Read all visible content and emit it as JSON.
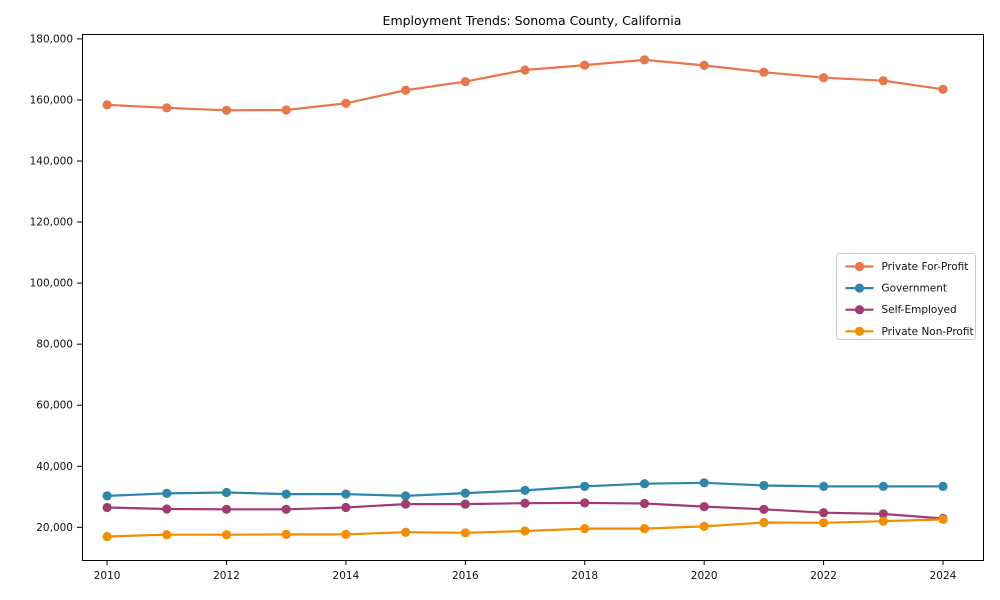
{
  "chart_data": {
    "type": "line",
    "title": "Employment Trends: Sonoma County, California",
    "x": [
      2010,
      2011,
      2012,
      2013,
      2014,
      2015,
      2016,
      2017,
      2018,
      2019,
      2020,
      2021,
      2022,
      2023,
      2024
    ],
    "series": [
      {
        "name": "Private For-Profit",
        "color": "#e8764b",
        "values": [
          158400,
          157400,
          156600,
          156700,
          158900,
          163200,
          166000,
          169800,
          171400,
          173100,
          171300,
          169100,
          167300,
          166300,
          163500
        ]
      },
      {
        "name": "Government",
        "color": "#2e86ab",
        "values": [
          30300,
          31100,
          31400,
          30900,
          30900,
          30300,
          31200,
          32100,
          33400,
          34300,
          34600,
          33700,
          33400,
          33400,
          33400
        ]
      },
      {
        "name": "Self-Employed",
        "color": "#a23b72",
        "values": [
          26500,
          26000,
          25900,
          25900,
          26500,
          27600,
          27600,
          27900,
          28000,
          27800,
          26800,
          25900,
          24800,
          24400,
          22900
        ]
      },
      {
        "name": "Private Non-Profit",
        "color": "#f18f01",
        "values": [
          17000,
          17600,
          17600,
          17700,
          17700,
          18400,
          18200,
          18800,
          19600,
          19600,
          20300,
          21600,
          21500,
          22000,
          22600
        ]
      }
    ],
    "xticks": [
      2010,
      2012,
      2014,
      2016,
      2018,
      2020,
      2022,
      2024
    ],
    "yticks": [
      20000,
      40000,
      60000,
      80000,
      100000,
      120000,
      140000,
      160000,
      180000
    ],
    "xlim": [
      2009.58,
      2024.67
    ],
    "ylim": [
      9300,
      181600
    ],
    "legend_position": "right",
    "grid": false,
    "axis_color": "#000000",
    "background_color": "#ffffff"
  }
}
